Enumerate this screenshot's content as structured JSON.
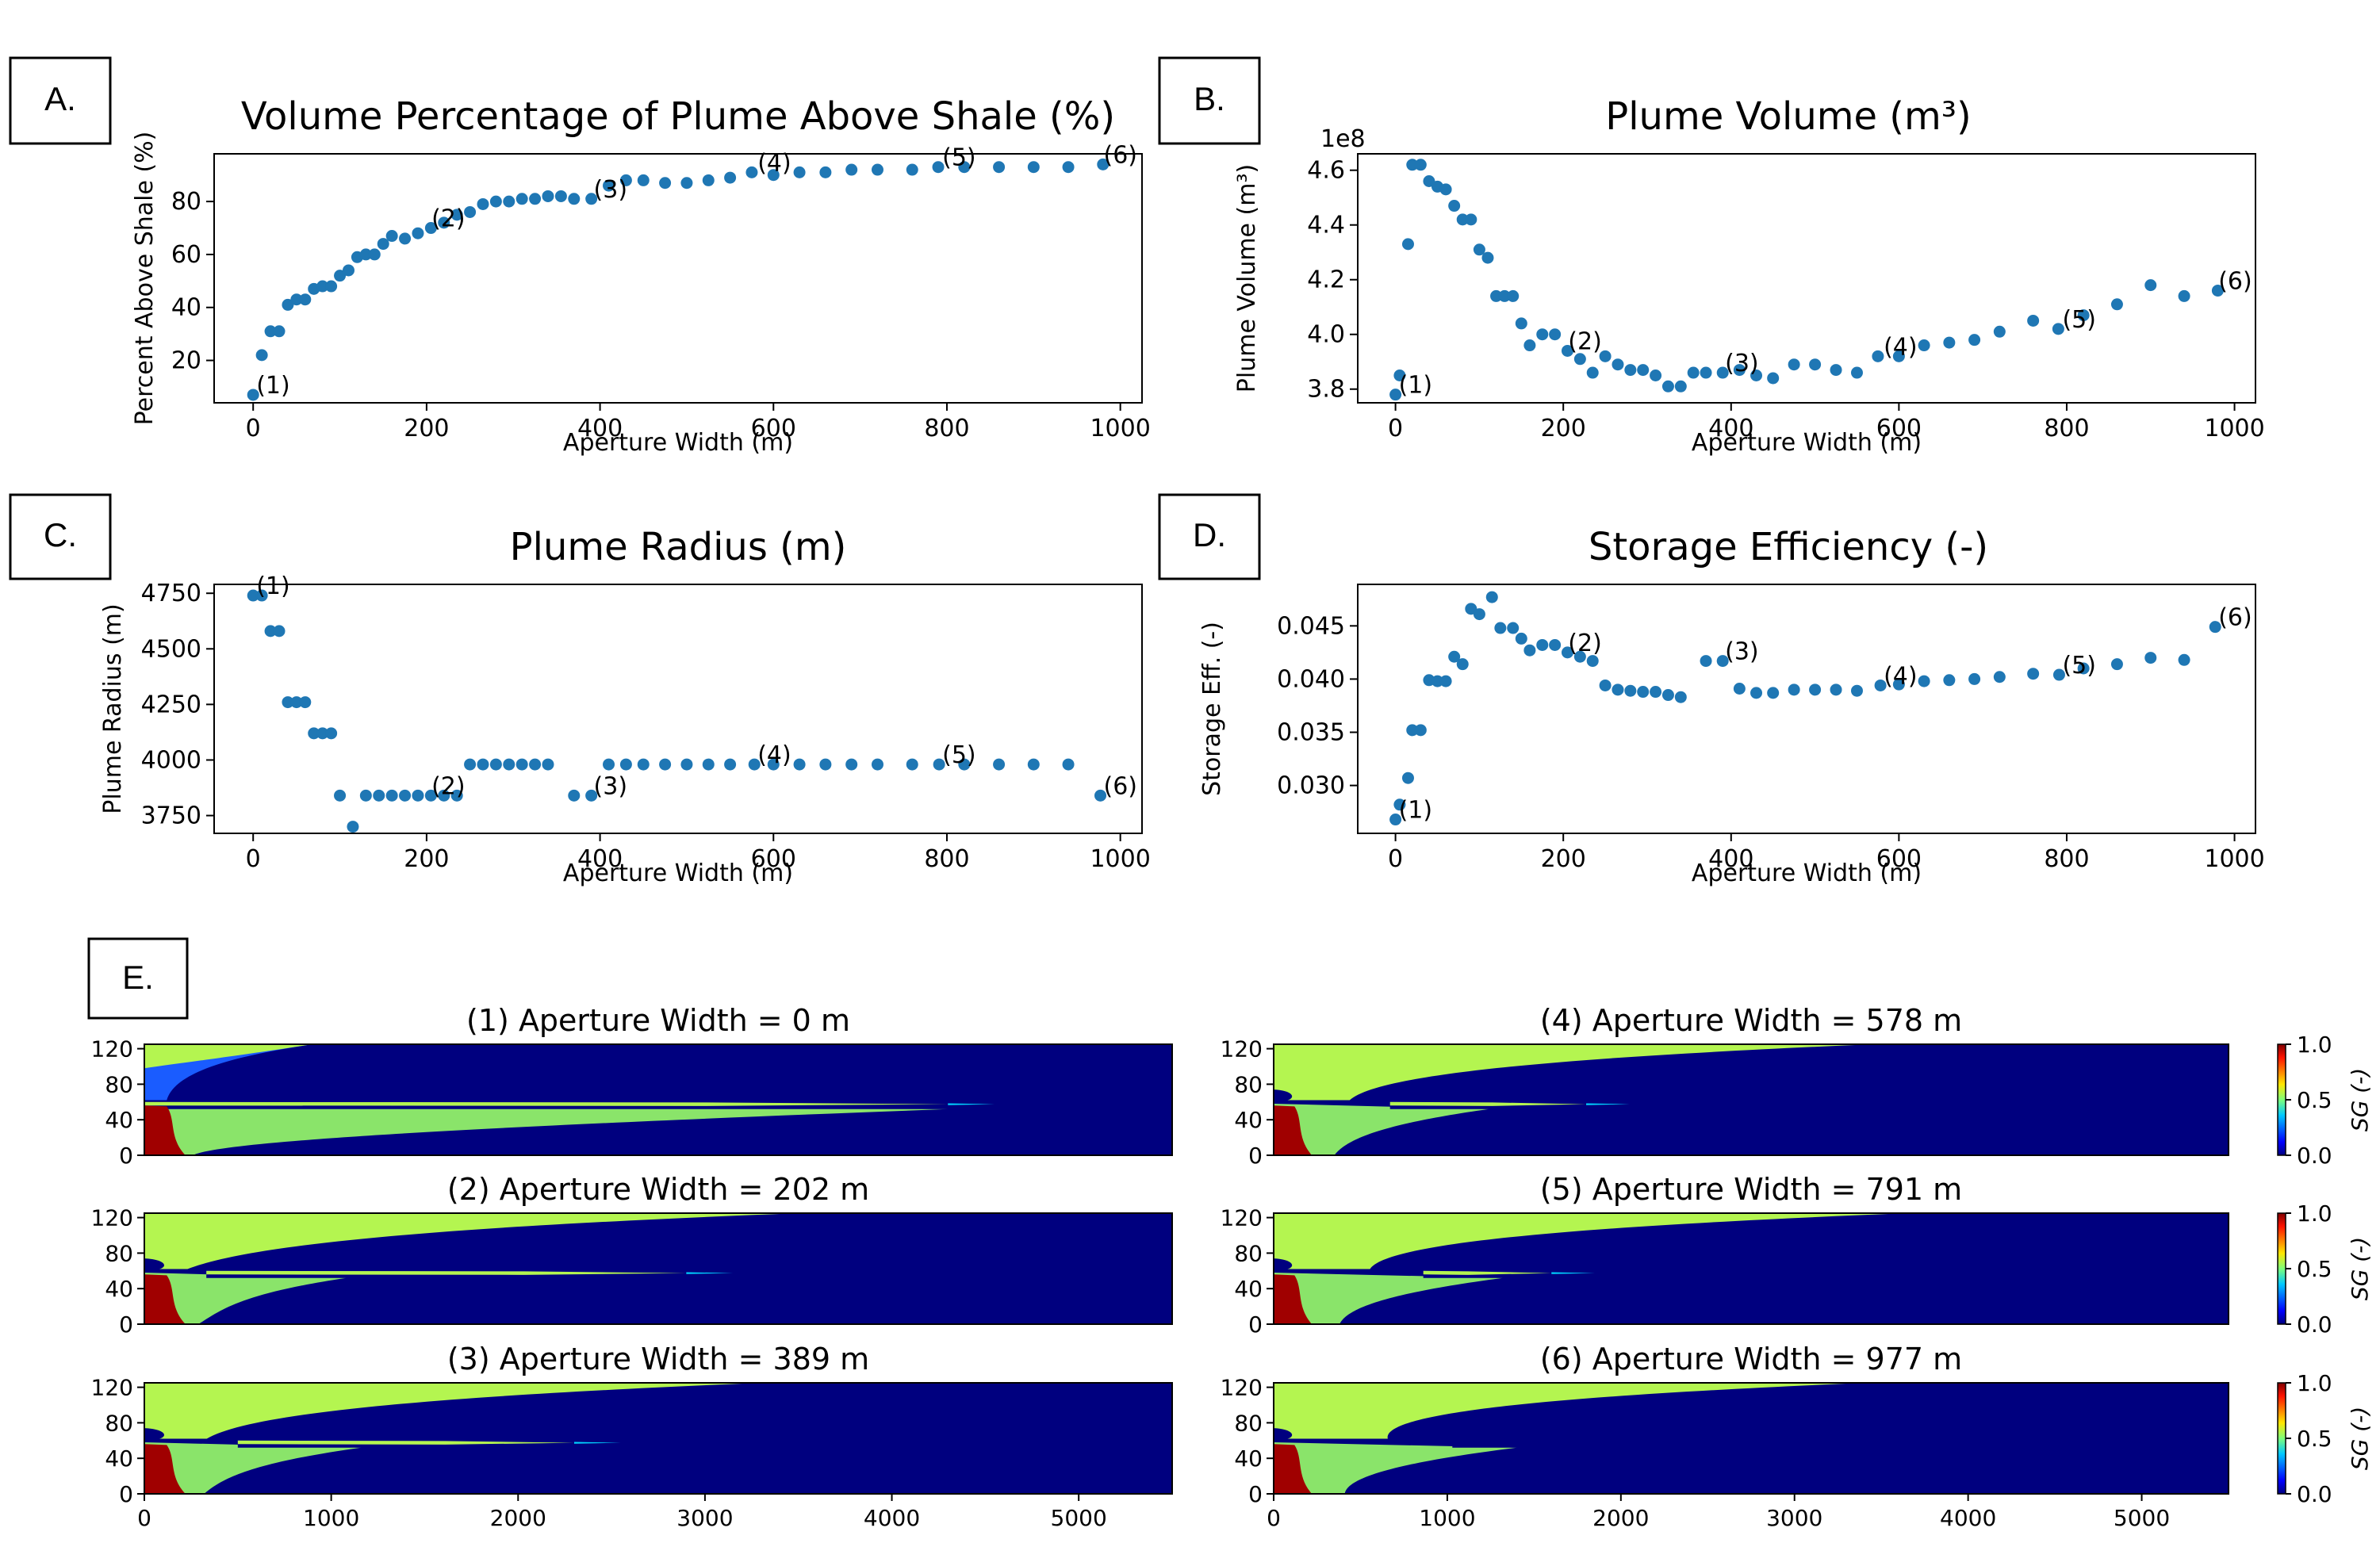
{
  "chart_data": [
    {
      "panel": "A.",
      "type": "scatter",
      "title": "Volume Percentage of Plume Above Shale (%)",
      "xlabel": "Aperture Width (m)",
      "ylabel": "Percent Above Shale (%)",
      "xlim": [
        -45,
        1025
      ],
      "ylim": [
        4,
        98
      ],
      "xticks": [
        0,
        200,
        400,
        600,
        800,
        1000
      ],
      "yticks": [
        20,
        40,
        60,
        80
      ],
      "marker_color": "#1f77b4",
      "x": [
        0,
        10,
        20,
        30,
        40,
        50,
        60,
        70,
        80,
        90,
        100,
        110,
        120,
        130,
        140,
        150,
        160,
        175,
        190,
        205,
        220,
        235,
        250,
        265,
        280,
        295,
        310,
        325,
        340,
        355,
        370,
        390,
        410,
        430,
        450,
        475,
        500,
        525,
        550,
        575,
        600,
        630,
        660,
        690,
        720,
        760,
        790,
        820,
        860,
        900,
        940,
        980
      ],
      "y": [
        7,
        22,
        31,
        31,
        41,
        43,
        43,
        47,
        48,
        48,
        52,
        54,
        59,
        60,
        60,
        64,
        67,
        66,
        68,
        70,
        72,
        75,
        76,
        79,
        80,
        80,
        81,
        81,
        82,
        82,
        81,
        81,
        86,
        88,
        88,
        87,
        87,
        88,
        89,
        91,
        90,
        91,
        91,
        92,
        92,
        92,
        93,
        93,
        93,
        93,
        93,
        94
      ],
      "annotations": [
        {
          "text": "(1)",
          "x": 0,
          "y": 7
        },
        {
          "text": "(2)",
          "x": 202,
          "y": 70
        },
        {
          "text": "(3)",
          "x": 389,
          "y": 81
        },
        {
          "text": "(4)",
          "x": 578,
          "y": 91
        },
        {
          "text": "(5)",
          "x": 791,
          "y": 93
        },
        {
          "text": "(6)",
          "x": 977,
          "y": 94
        }
      ]
    },
    {
      "panel": "B.",
      "type": "scatter",
      "title": "Plume Volume (m³)",
      "xlabel": "Aperture Width (m)",
      "ylabel": "Plume Volume (m³)",
      "offset_label": "1e8",
      "xlim": [
        -45,
        1025
      ],
      "ylim": [
        3.75,
        4.66
      ],
      "xticks": [
        0,
        200,
        400,
        600,
        800,
        1000
      ],
      "yticks": [
        3.8,
        4.0,
        4.2,
        4.4,
        4.6
      ],
      "ytick_labels": [
        "3.8",
        "4.0",
        "4.2",
        "4.4",
        "4.6"
      ],
      "marker_color": "#1f77b4",
      "x": [
        0,
        5,
        15,
        20,
        30,
        40,
        50,
        60,
        70,
        80,
        90,
        100,
        110,
        120,
        130,
        140,
        150,
        160,
        175,
        190,
        205,
        220,
        235,
        250,
        265,
        280,
        295,
        310,
        325,
        340,
        355,
        370,
        390,
        410,
        430,
        450,
        475,
        500,
        525,
        550,
        575,
        600,
        630,
        660,
        690,
        720,
        760,
        790,
        820,
        860,
        900,
        940,
        980
      ],
      "y": [
        3.78,
        3.85,
        4.33,
        4.62,
        4.62,
        4.56,
        4.54,
        4.53,
        4.47,
        4.42,
        4.42,
        4.31,
        4.28,
        4.14,
        4.14,
        4.14,
        4.04,
        3.96,
        4.0,
        4.0,
        3.94,
        3.91,
        3.86,
        3.92,
        3.89,
        3.87,
        3.87,
        3.85,
        3.81,
        3.81,
        3.86,
        3.86,
        3.86,
        3.87,
        3.85,
        3.84,
        3.89,
        3.89,
        3.87,
        3.86,
        3.92,
        3.92,
        3.96,
        3.97,
        3.98,
        4.01,
        4.05,
        4.02,
        4.07,
        4.11,
        4.18,
        4.14,
        4.16
      ],
      "annotations": [
        {
          "text": "(1)",
          "x": 0,
          "y": 3.78
        },
        {
          "text": "(2)",
          "x": 202,
          "y": 3.94
        },
        {
          "text": "(3)",
          "x": 389,
          "y": 3.86
        },
        {
          "text": "(4)",
          "x": 578,
          "y": 3.92
        },
        {
          "text": "(5)",
          "x": 791,
          "y": 4.02
        },
        {
          "text": "(6)",
          "x": 977,
          "y": 4.16
        }
      ]
    },
    {
      "panel": "C.",
      "type": "scatter",
      "title": "Plume Radius (m)",
      "xlabel": "Aperture Width (m)",
      "ylabel": "Plume Radius (m)",
      "xlim": [
        -45,
        1025
      ],
      "ylim": [
        3670,
        4790
      ],
      "xticks": [
        0,
        200,
        400,
        600,
        800,
        1000
      ],
      "yticks": [
        3750,
        4000,
        4250,
        4500,
        4750
      ],
      "marker_color": "#1f77b4",
      "x": [
        0,
        10,
        20,
        30,
        40,
        50,
        60,
        70,
        80,
        90,
        100,
        115,
        130,
        145,
        160,
        175,
        190,
        205,
        220,
        235,
        250,
        265,
        280,
        295,
        310,
        325,
        340,
        370,
        390,
        410,
        430,
        450,
        475,
        500,
        525,
        550,
        578,
        600,
        630,
        660,
        690,
        720,
        760,
        791,
        820,
        860,
        900,
        940,
        977
      ],
      "y": [
        4740,
        4740,
        4580,
        4580,
        4260,
        4260,
        4260,
        4120,
        4120,
        4120,
        3840,
        3700,
        3840,
        3840,
        3840,
        3840,
        3840,
        3840,
        3840,
        3840,
        3980,
        3980,
        3980,
        3980,
        3980,
        3980,
        3980,
        3840,
        3840,
        3980,
        3980,
        3980,
        3980,
        3980,
        3980,
        3980,
        3980,
        3980,
        3980,
        3980,
        3980,
        3980,
        3980,
        3980,
        3980,
        3980,
        3980,
        3980,
        3840
      ],
      "annotations": [
        {
          "text": "(1)",
          "x": 0,
          "y": 4740
        },
        {
          "text": "(2)",
          "x": 202,
          "y": 3840
        },
        {
          "text": "(3)",
          "x": 389,
          "y": 3840
        },
        {
          "text": "(4)",
          "x": 578,
          "y": 3980
        },
        {
          "text": "(5)",
          "x": 791,
          "y": 3980
        },
        {
          "text": "(6)",
          "x": 977,
          "y": 3840
        }
      ]
    },
    {
      "panel": "D.",
      "type": "scatter",
      "title": "Storage Efficiency (-)",
      "xlabel": "Aperture Width (m)",
      "ylabel": "Storage Eff. (-)",
      "xlim": [
        -45,
        1025
      ],
      "ylim": [
        0.0255,
        0.0489
      ],
      "xticks": [
        0,
        200,
        400,
        600,
        800,
        1000
      ],
      "yticks": [
        0.03,
        0.035,
        0.04,
        0.045
      ],
      "ytick_labels": [
        "0.030",
        "0.035",
        "0.040",
        "0.045"
      ],
      "marker_color": "#1f77b4",
      "x": [
        0,
        5,
        15,
        20,
        30,
        40,
        50,
        60,
        70,
        80,
        90,
        100,
        115,
        125,
        140,
        150,
        160,
        175,
        190,
        205,
        220,
        235,
        250,
        265,
        280,
        295,
        310,
        325,
        340,
        370,
        390,
        410,
        430,
        450,
        475,
        500,
        525,
        550,
        578,
        600,
        630,
        660,
        690,
        720,
        760,
        791,
        820,
        860,
        900,
        940,
        977
      ],
      "y": [
        0.0268,
        0.0282,
        0.0307,
        0.0352,
        0.0352,
        0.0399,
        0.0398,
        0.0398,
        0.0421,
        0.0414,
        0.0466,
        0.0461,
        0.0477,
        0.0448,
        0.0448,
        0.0438,
        0.0427,
        0.0432,
        0.0432,
        0.0425,
        0.0421,
        0.0417,
        0.0394,
        0.039,
        0.0389,
        0.0388,
        0.0388,
        0.0385,
        0.0383,
        0.0417,
        0.0417,
        0.0391,
        0.0387,
        0.0387,
        0.039,
        0.039,
        0.039,
        0.0389,
        0.0394,
        0.0395,
        0.0398,
        0.0399,
        0.04,
        0.0402,
        0.0405,
        0.0404,
        0.041,
        0.0414,
        0.042,
        0.0418,
        0.0449
      ],
      "annotations": [
        {
          "text": "(1)",
          "x": 0,
          "y": 0.0268
        },
        {
          "text": "(2)",
          "x": 202,
          "y": 0.0425
        },
        {
          "text": "(3)",
          "x": 389,
          "y": 0.0417
        },
        {
          "text": "(4)",
          "x": 578,
          "y": 0.0394
        },
        {
          "text": "(5)",
          "x": 791,
          "y": 0.0404
        },
        {
          "text": "(6)",
          "x": 977,
          "y": 0.0449
        }
      ]
    },
    {
      "panel": "E.",
      "type": "heatmap",
      "colormap": "jet",
      "xlim": [
        0,
        5500
      ],
      "ylim": [
        0,
        125
      ],
      "xticks": [
        0,
        1000,
        2000,
        3000,
        4000,
        5000
      ],
      "yticks": [
        0,
        40,
        80,
        120
      ],
      "colorbar": {
        "label": "SG (-)",
        "ticks": [
          "0.0",
          "0.5",
          "1.0"
        ]
      },
      "colors": {
        "low": "#00007f",
        "cyan": "#00d4ff",
        "yellow_green": "#b4f550",
        "green": "#8ae46a",
        "red": "#a00000"
      },
      "maps": [
        {
          "title": "(1) Aperture Width = 0 m",
          "aperture": 0,
          "upper_extent": 900,
          "layer_extent": 4300
        },
        {
          "title": "(2) Aperture Width = 202 m",
          "aperture": 202,
          "upper_extent": 3500,
          "layer_extent": 2900
        },
        {
          "title": "(3) Aperture Width = 389 m",
          "aperture": 389,
          "upper_extent": 3300,
          "layer_extent": 2300
        },
        {
          "title": "(4) Aperture Width = 578 m",
          "aperture": 578,
          "upper_extent": 3450,
          "layer_extent": 1800
        },
        {
          "title": "(5) Aperture Width = 791 m",
          "aperture": 791,
          "upper_extent": 3650,
          "layer_extent": 1600
        },
        {
          "title": "(6) Aperture Width = 977 m",
          "aperture": 977,
          "upper_extent": 3400,
          "layer_extent": 0
        }
      ]
    }
  ]
}
